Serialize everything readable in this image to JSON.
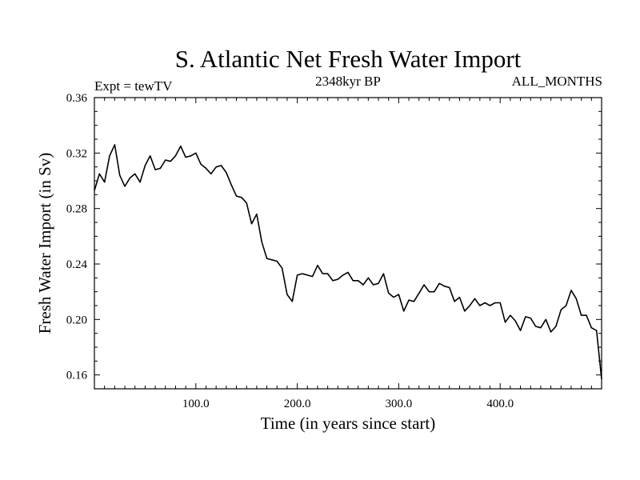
{
  "chart_data": {
    "type": "line",
    "title": "S. Atlantic Net Fresh Water Import",
    "left_label": "Expt = tewTV",
    "center_label": "2348kyr BP",
    "right_label": "ALL_MONTHS",
    "xlabel": "Time (in years since start)",
    "ylabel": "Fresh Water Import (in Sv)",
    "xlim": [
      0,
      500
    ],
    "ylim": [
      0.15,
      0.36
    ],
    "xticks": [
      100,
      200,
      300,
      400
    ],
    "xtick_labels": [
      "100.0",
      "200.0",
      "300.0",
      "400.0"
    ],
    "yticks": [
      0.16,
      0.2,
      0.24,
      0.28,
      0.32,
      0.36
    ],
    "ytick_labels": [
      "0.16",
      "0.20",
      "0.24",
      "0.28",
      "0.32",
      "0.36"
    ],
    "grid": false,
    "series": [
      {
        "name": "tewTV",
        "color": "#000000",
        "x_start": 0,
        "x_step": 5,
        "values": [
          0.293,
          0.305,
          0.299,
          0.318,
          0.326,
          0.304,
          0.296,
          0.302,
          0.305,
          0.299,
          0.311,
          0.318,
          0.308,
          0.309,
          0.315,
          0.314,
          0.318,
          0.325,
          0.317,
          0.318,
          0.32,
          0.312,
          0.309,
          0.305,
          0.31,
          0.311,
          0.306,
          0.297,
          0.289,
          0.288,
          0.284,
          0.269,
          0.276,
          0.256,
          0.244,
          0.243,
          0.242,
          0.237,
          0.218,
          0.213,
          0.232,
          0.233,
          0.232,
          0.231,
          0.239,
          0.233,
          0.233,
          0.228,
          0.229,
          0.232,
          0.234,
          0.228,
          0.228,
          0.225,
          0.23,
          0.225,
          0.226,
          0.233,
          0.219,
          0.216,
          0.218,
          0.206,
          0.214,
          0.213,
          0.219,
          0.225,
          0.22,
          0.22,
          0.226,
          0.224,
          0.223,
          0.213,
          0.216,
          0.206,
          0.21,
          0.215,
          0.21,
          0.212,
          0.21,
          0.212,
          0.212,
          0.198,
          0.203,
          0.199,
          0.192,
          0.202,
          0.201,
          0.195,
          0.194,
          0.2,
          0.191,
          0.195,
          0.207,
          0.21,
          0.221,
          0.215,
          0.203,
          0.203,
          0.194,
          0.192,
          0.157
        ]
      }
    ]
  }
}
